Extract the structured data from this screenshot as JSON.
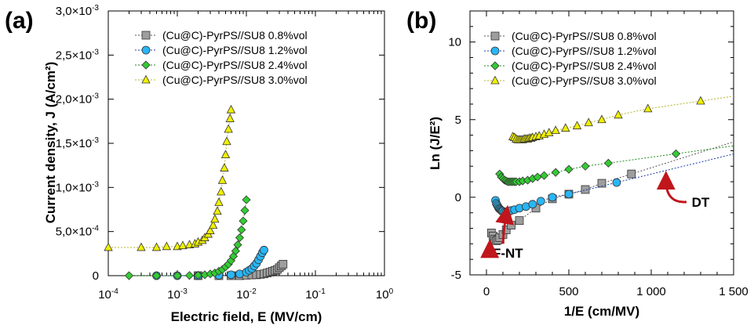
{
  "chart_data": [
    {
      "panel": "(a)",
      "type": "scatter",
      "xlabel": "Electric field, E (MV/cm)",
      "ylabel": "Current density, J (A/cm²)",
      "xscale": "log",
      "xlim": [
        0.0001,
        1
      ],
      "ylim": [
        0,
        0.003
      ],
      "x_ticks": [
        {
          "value": 0.0001,
          "base": "10",
          "exp": "-4"
        },
        {
          "value": 0.001,
          "base": "10",
          "exp": "-3"
        },
        {
          "value": 0.01,
          "base": "10",
          "exp": "-2"
        },
        {
          "value": 0.1,
          "base": "10",
          "exp": "-1"
        },
        {
          "value": 1,
          "base": "10",
          "exp": "0"
        }
      ],
      "y_ticks": [
        {
          "value": 0,
          "mant": "0",
          "exp": ""
        },
        {
          "value": 0.0005,
          "mant": "5,0×10",
          "exp": "-4"
        },
        {
          "value": 0.001,
          "mant": "1,0×10",
          "exp": "-3"
        },
        {
          "value": 0.0015,
          "mant": "1,5×10",
          "exp": "-3"
        },
        {
          "value": 0.002,
          "mant": "2,0×10",
          "exp": "-3"
        },
        {
          "value": 0.0025,
          "mant": "2,5×10",
          "exp": "-3"
        },
        {
          "value": 0.003,
          "mant": "3,0×10",
          "exp": "-3"
        }
      ],
      "legend_position": "top-right",
      "series": [
        {
          "name": "(Cu@C)-PyrPS//SU8 0.8%vol",
          "marker": "square",
          "color": "#9e9e9e",
          "line": "#555555",
          "x": [
            0.002,
            0.004,
            0.006,
            0.008,
            0.01,
            0.012,
            0.014,
            0.016,
            0.018,
            0.02,
            0.022,
            0.024,
            0.026,
            0.028,
            0.03,
            0.032,
            0.034
          ],
          "y": [
            0,
            0,
            0,
            0,
            5e-06,
            8e-06,
            1e-05,
            1.5e-05,
            2e-05,
            3e-05,
            4e-05,
            5e-05,
            6e-05,
            7e-05,
            9e-05,
            0.00011,
            0.00013
          ]
        },
        {
          "name": "(Cu@C)-PyrPS//SU8 1.2%vol",
          "marker": "circle",
          "color": "#29b6f6",
          "line": "#1a3da8",
          "x": [
            0.0005,
            0.001,
            0.002,
            0.004,
            0.006,
            0.008,
            0.01,
            0.011,
            0.012,
            0.013,
            0.014,
            0.015,
            0.016,
            0.017,
            0.018
          ],
          "y": [
            0,
            0,
            0,
            5e-06,
            1e-05,
            2e-05,
            4e-05,
            6e-05,
            8e-05,
            0.00011,
            0.00014,
            0.00018,
            0.00022,
            0.00026,
            0.00029
          ]
        },
        {
          "name": "(Cu@C)-PyrPS//SU8 2.4%vol",
          "marker": "diamond",
          "color": "#33cc33",
          "line": "#1e8c1e",
          "x": [
            0.0002,
            0.0005,
            0.001,
            0.0015,
            0.002,
            0.0025,
            0.003,
            0.0035,
            0.004,
            0.0045,
            0.005,
            0.0055,
            0.006,
            0.0065,
            0.007,
            0.0075,
            0.008,
            0.0085,
            0.009,
            0.0095,
            0.01
          ],
          "y": [
            0,
            0,
            0,
            2e-06,
            5e-06,
            1e-05,
            2e-05,
            3e-05,
            5e-05,
            7e-05,
            0.0001,
            0.00013,
            0.00017,
            0.00022,
            0.00028,
            0.00035,
            0.00043,
            0.00052,
            0.00062,
            0.00074,
            0.00086
          ]
        },
        {
          "name": "(Cu@C)-PyrPS//SU8 3.0%vol",
          "marker": "triangle",
          "color": "#f0f000",
          "line": "#b5b52a",
          "x": [
            0.0001,
            0.0003,
            0.0005,
            0.0007,
            0.001,
            0.0012,
            0.0015,
            0.0018,
            0.002,
            0.0023,
            0.0025,
            0.0028,
            0.003,
            0.0033,
            0.0035,
            0.0038,
            0.004,
            0.0043,
            0.0045,
            0.0048,
            0.005,
            0.0052,
            0.0055,
            0.0058,
            0.006
          ],
          "y": [
            0.00032,
            0.00032,
            0.00032,
            0.00033,
            0.00033,
            0.00034,
            0.00035,
            0.00036,
            0.00038,
            0.0004,
            0.00043,
            0.00047,
            0.00051,
            0.00057,
            0.00064,
            0.00073,
            0.00083,
            0.00095,
            0.00108,
            0.00122,
            0.00137,
            0.00152,
            0.00166,
            0.00178,
            0.00188
          ]
        }
      ]
    },
    {
      "panel": "(b)",
      "type": "scatter",
      "xlabel": "1/E (cm/MV)",
      "ylabel": "Ln (J/E²)",
      "xlim": [
        -100,
        1500
      ],
      "ylim": [
        -5,
        12
      ],
      "x_ticks": [
        {
          "value": 0,
          "label": "0"
        },
        {
          "value": 500,
          "label": "500"
        },
        {
          "value": 1000,
          "label": "1 000"
        },
        {
          "value": 1500,
          "label": "1 500"
        }
      ],
      "y_ticks": [
        {
          "value": -5,
          "label": "-5"
        },
        {
          "value": 0,
          "label": "0"
        },
        {
          "value": 5,
          "label": "5"
        },
        {
          "value": 10,
          "label": "10"
        }
      ],
      "legend_position": "top-right",
      "annotations": [
        {
          "text": "DT",
          "x": 1300,
          "y": -0.3,
          "arrow_to": [
            1080,
            1.3
          ]
        },
        {
          "text": "F-NT",
          "x": 130,
          "y": -3.6,
          "arrow_to": [
            120,
            -0.8
          ],
          "arrow2_to": [
            20,
            -3
          ]
        }
      ],
      "series": [
        {
          "name": "(Cu@C)-PyrPS//SU8 0.8%vol",
          "marker": "square",
          "color": "#9e9e9e",
          "line": "#555555",
          "x": [
            30,
            40,
            50,
            60,
            70,
            80,
            100,
            120,
            150,
            200,
            300,
            400,
            500,
            600,
            700,
            880
          ],
          "y": [
            -2.3,
            -2.5,
            -2.7,
            -2.8,
            -2.75,
            -2.6,
            -2.4,
            -2.1,
            -1.8,
            -1.5,
            -0.7,
            -0.1,
            0.2,
            0.5,
            0.9,
            1.5
          ]
        },
        {
          "name": "(Cu@C)-PyrPS//SU8 1.2%vol",
          "marker": "circle",
          "color": "#29b6f6",
          "line": "#1a3da8",
          "x": [
            55,
            60,
            65,
            70,
            75,
            80,
            85,
            90,
            95,
            100,
            110,
            120,
            130,
            140,
            150,
            170,
            200,
            240,
            280,
            330,
            400,
            500,
            790
          ],
          "y": [
            -0.2,
            -0.4,
            -0.5,
            -0.6,
            -0.7,
            -0.75,
            -0.8,
            -0.85,
            -0.9,
            -0.9,
            -0.95,
            -0.95,
            -0.9,
            -0.9,
            -0.85,
            -0.8,
            -0.7,
            -0.6,
            -0.45,
            -0.25,
            0,
            0.2,
            0.95
          ]
        },
        {
          "name": "(Cu@C)-PyrPS//SU8 2.4%vol",
          "marker": "diamond",
          "color": "#33cc33",
          "line": "#1e8c1e",
          "x": [
            80,
            90,
            100,
            110,
            120,
            130,
            140,
            150,
            160,
            170,
            180,
            200,
            220,
            250,
            280,
            310,
            350,
            420,
            500,
            600,
            740,
            1150
          ],
          "y": [
            1.5,
            1.3,
            1.2,
            1.1,
            1.05,
            1.0,
            1.0,
            1.0,
            1.0,
            1.0,
            1.0,
            1.0,
            1.05,
            1.1,
            1.2,
            1.3,
            1.4,
            1.6,
            1.8,
            2.0,
            2.2,
            2.8
          ]
        },
        {
          "name": "(Cu@C)-PyrPS//SU8 3.0%vol",
          "marker": "triangle",
          "color": "#f0f000",
          "line": "#b5b52a",
          "x": [
            160,
            170,
            180,
            190,
            200,
            210,
            220,
            230,
            240,
            250,
            260,
            270,
            280,
            300,
            320,
            350,
            380,
            420,
            480,
            550,
            620,
            700,
            800,
            980,
            1300
          ],
          "y": [
            3.9,
            3.85,
            3.75,
            3.7,
            3.7,
            3.7,
            3.7,
            3.75,
            3.75,
            3.75,
            3.8,
            3.8,
            3.85,
            3.9,
            3.95,
            4.05,
            4.15,
            4.3,
            4.45,
            4.6,
            4.8,
            5.0,
            5.3,
            5.7,
            6.2
          ]
        }
      ]
    }
  ]
}
